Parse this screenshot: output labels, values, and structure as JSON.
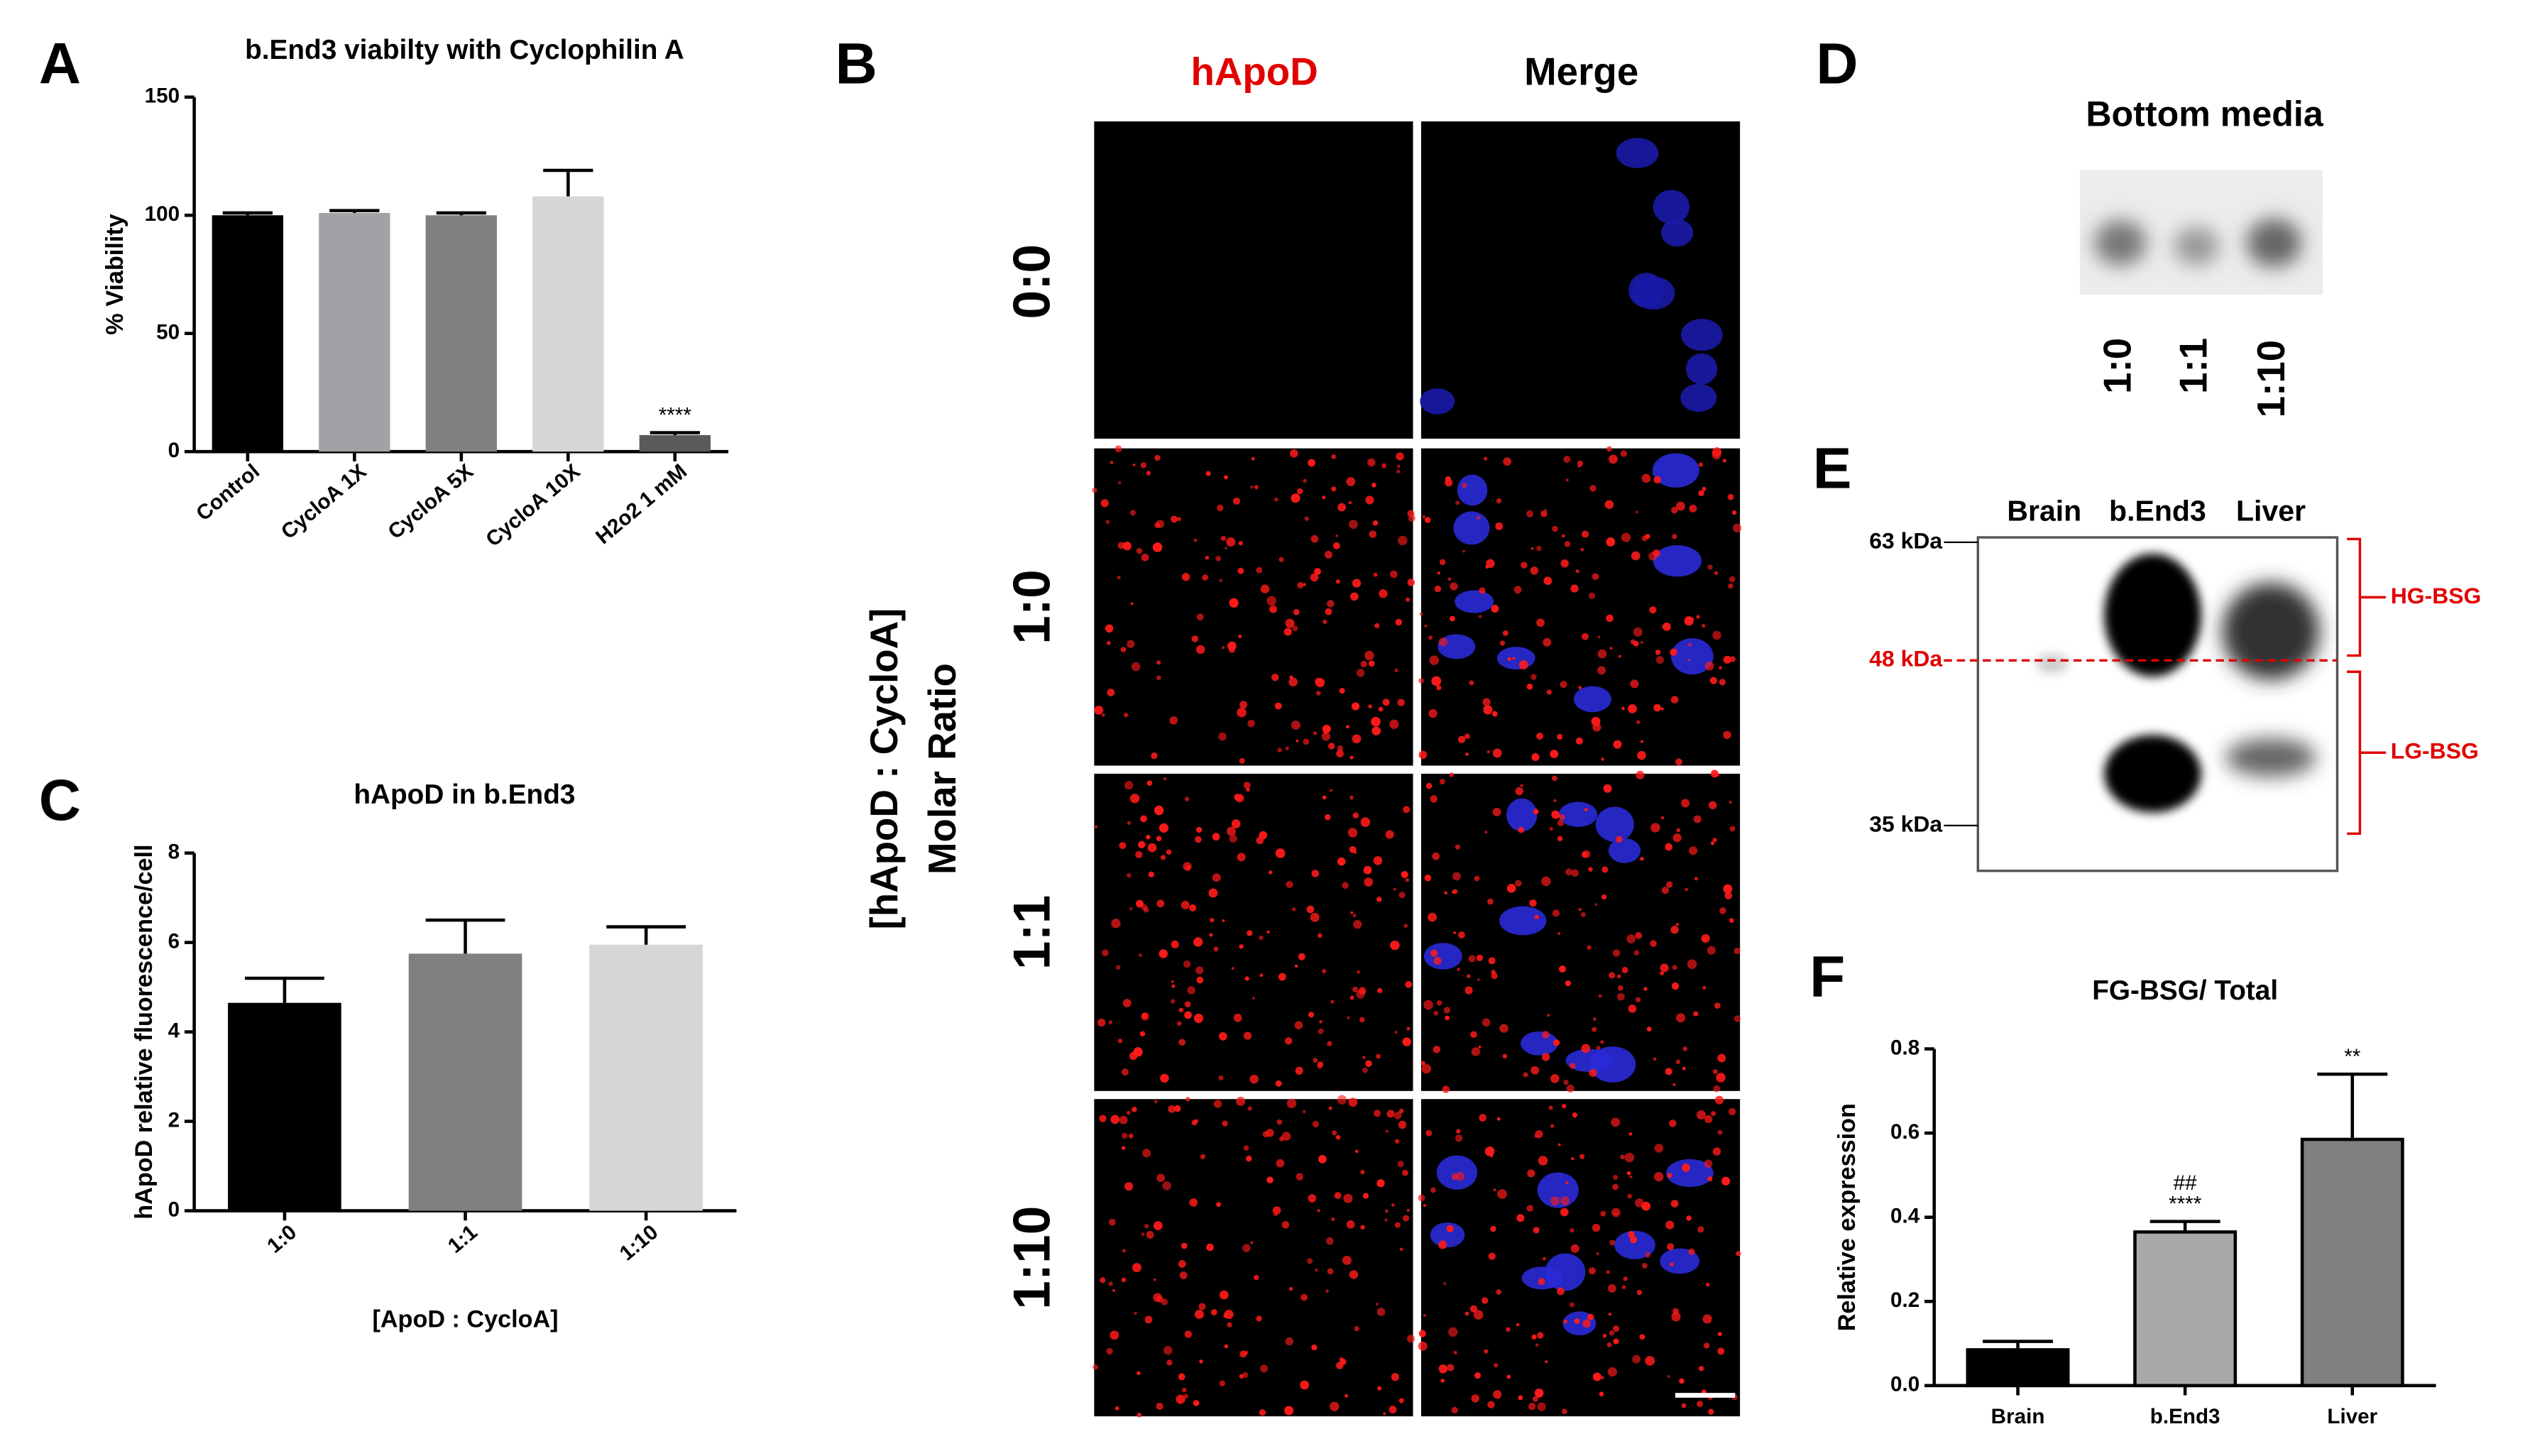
{
  "chart_data": [
    {
      "type": "bar",
      "title": "b.End3 viabilty with Cyclophilin A",
      "ylabel": "% Viability",
      "categories": [
        "Control",
        "CycloA 1X",
        "CycloA 5X",
        "CycloA 10X",
        "H2o2 1 mM"
      ],
      "values": [
        100,
        101,
        100,
        108,
        7
      ],
      "errors": [
        1,
        1,
        1,
        11,
        1
      ],
      "colors": [
        "#000000",
        "#a2a2a6",
        "#808080",
        "#d6d6d6",
        "#5a5a5a"
      ],
      "annotations": [
        null,
        null,
        null,
        null,
        [
          "****"
        ]
      ],
      "ylim": [
        0,
        150
      ],
      "yticks": [
        0,
        50,
        100,
        150
      ],
      "bar_outline": false
    },
    {
      "type": "bar",
      "title": "hApoD in b.End3",
      "ylabel": "hApoD relative fluorescence/cell",
      "xlabel": "[ApoD : CycloA]",
      "categories": [
        "1:0",
        "1:1",
        "1:10"
      ],
      "values": [
        4.65,
        5.75,
        5.95
      ],
      "errors": [
        0.55,
        0.75,
        0.4
      ],
      "colors": [
        "#000000",
        "#808080",
        "#d6d6d6"
      ],
      "ylim": [
        0,
        8
      ],
      "yticks": [
        0,
        2,
        4,
        6,
        8
      ],
      "bar_outline": false
    },
    {
      "type": "bar",
      "title": "FG-BSG/ Total",
      "ylabel": "Relative expression",
      "categories": [
        "Brain",
        "b.End3",
        "Liver"
      ],
      "values": [
        0.085,
        0.365,
        0.585
      ],
      "errors": [
        0.02,
        0.025,
        0.155
      ],
      "colors": [
        "#000000",
        "#a9a9a9",
        "#808080"
      ],
      "annotations": [
        null,
        [
          "##",
          "****"
        ],
        [
          "**"
        ]
      ],
      "ylim": [
        0,
        0.8
      ],
      "yticks": [
        {
          "value": 0,
          "label": "0.0"
        },
        0.2,
        0.4,
        0.6,
        0.8
      ],
      "bar_outline": true
    }
  ],
  "figure": {
    "panel_letters": [
      "A",
      "B",
      "C",
      "D",
      "E",
      "F"
    ],
    "panel_b": {
      "columns": [
        "hApoD",
        "Merge"
      ],
      "rows": [
        "0:0",
        "1:0",
        "1:1",
        "1:10"
      ],
      "side_label": [
        "[hApoD : CycloA]",
        "Molar Ratio"
      ]
    },
    "panel_d": {
      "title": "Bottom media",
      "lanes": [
        "1:0",
        "1:1",
        "1:10"
      ]
    },
    "panel_e": {
      "lanes": [
        "Brain",
        "b.End3",
        "Liver"
      ],
      "markers": [
        "63 kDa",
        "48 kDa",
        "35 kDa"
      ],
      "bands": [
        "HG-BSG",
        "LG-BSG"
      ]
    }
  }
}
